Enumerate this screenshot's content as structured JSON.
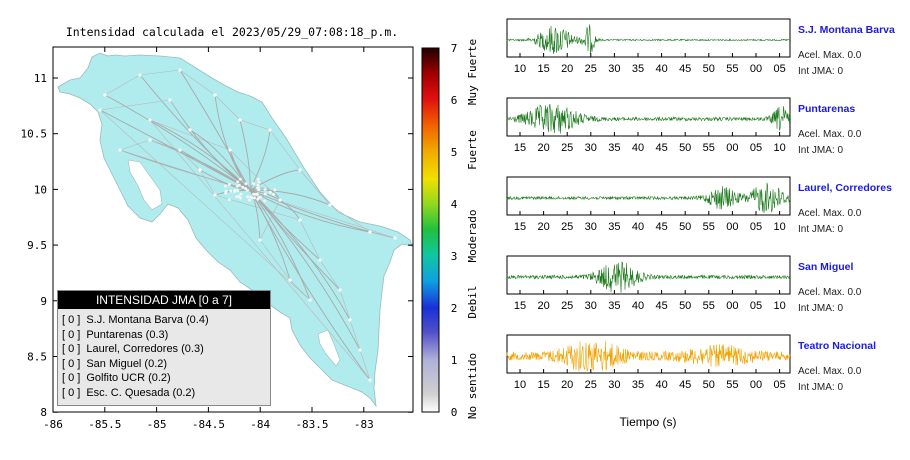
{
  "map": {
    "title": "Intensidad calculada el 2023/05/29_07:08:18_p.m.",
    "xticks": [
      "-86",
      "-85.5",
      "-85",
      "-84.5",
      "-84",
      "-83.5",
      "-83"
    ],
    "yticks": [
      "11",
      "10.5",
      "10",
      "9.5",
      "9",
      "8.5",
      "8"
    ],
    "land_color": "#b0ecee",
    "legend": {
      "title": "INTENSIDAD JMA [0 a 7]",
      "entries": [
        {
          "badge": "[ 0 ]",
          "label": "S.J. Montana Barva (0.4)"
        },
        {
          "badge": "[ 0 ]",
          "label": "Puntarenas (0.3)"
        },
        {
          "badge": "[ 0 ]",
          "label": "Laurel, Corredores (0.3)"
        },
        {
          "badge": "[ 0 ]",
          "label": "San Miguel (0.2)"
        },
        {
          "badge": "[ 0 ]",
          "label": "Golfito UCR (0.2)"
        },
        {
          "badge": "[ 0 ]",
          "label": "Esc. C. Quesada (0.2)"
        }
      ]
    }
  },
  "colorbar": {
    "ticks": [
      "0",
      "1",
      "2",
      "3",
      "4",
      "5",
      "6",
      "7"
    ],
    "labels": [
      "No sentido",
      "Debil",
      "Moderado",
      "Fuerte",
      "Muy Fuerte"
    ]
  },
  "stations": [
    {
      "name": "S.J. Montana Barva",
      "acel": "Acel. Max. 0.0",
      "int": "Int JMA: 0",
      "color": "#1a7a1a",
      "ticks": [
        "10",
        "15",
        "20",
        "25",
        "30",
        "35",
        "40",
        "45",
        "50",
        "55",
        "00",
        "05"
      ],
      "burst": [
        {
          "c": 0.17,
          "w": 0.06,
          "a": 1.0
        },
        {
          "c": 0.29,
          "w": 0.02,
          "a": 1.0
        }
      ],
      "base": 0.05
    },
    {
      "name": "Puntarenas",
      "acel": "Acel. Max. 0.0",
      "int": "Int JMA: 0",
      "color": "#1a7a1a",
      "ticks": [
        "15",
        "20",
        "25",
        "30",
        "35",
        "40",
        "45",
        "50",
        "55",
        "00",
        "05",
        "10"
      ],
      "burst": [
        {
          "c": 0.16,
          "w": 0.09,
          "a": 1.0
        },
        {
          "c": 0.97,
          "w": 0.03,
          "a": 0.8
        }
      ],
      "base": 0.12
    },
    {
      "name": "Laurel, Corredores",
      "acel": "Acel. Max. 0.0",
      "int": "Int JMA: 0",
      "color": "#1a7a1a",
      "ticks": [
        "15",
        "20",
        "25",
        "30",
        "35",
        "40",
        "45",
        "50",
        "55",
        "00",
        "05",
        "10"
      ],
      "burst": [
        {
          "c": 0.76,
          "w": 0.05,
          "a": 0.75
        },
        {
          "c": 0.92,
          "w": 0.06,
          "a": 1.0
        }
      ],
      "base": 0.1
    },
    {
      "name": "San Miguel",
      "acel": "Acel. Max. 0.0",
      "int": "Int JMA: 0",
      "color": "#1a7a1a",
      "ticks": [
        "15",
        "20",
        "25",
        "30",
        "35",
        "40",
        "45",
        "50",
        "55",
        "00",
        "05",
        "10"
      ],
      "burst": [
        {
          "c": 0.39,
          "w": 0.07,
          "a": 1.0
        }
      ],
      "base": 0.12
    },
    {
      "name": "Teatro Nacional",
      "acel": "Acel. Max. 0.0",
      "int": "Int JMA: 0",
      "color": "#f2a300",
      "ticks": [
        "10",
        "15",
        "20",
        "25",
        "30",
        "35",
        "40",
        "45",
        "50",
        "55",
        "00",
        "05"
      ],
      "burst": [
        {
          "c": 0.3,
          "w": 0.1,
          "a": 1.0
        },
        {
          "c": 0.75,
          "w": 0.12,
          "a": 0.5
        }
      ],
      "base": 0.28
    }
  ],
  "xlabel": "Tiempo (s)"
}
